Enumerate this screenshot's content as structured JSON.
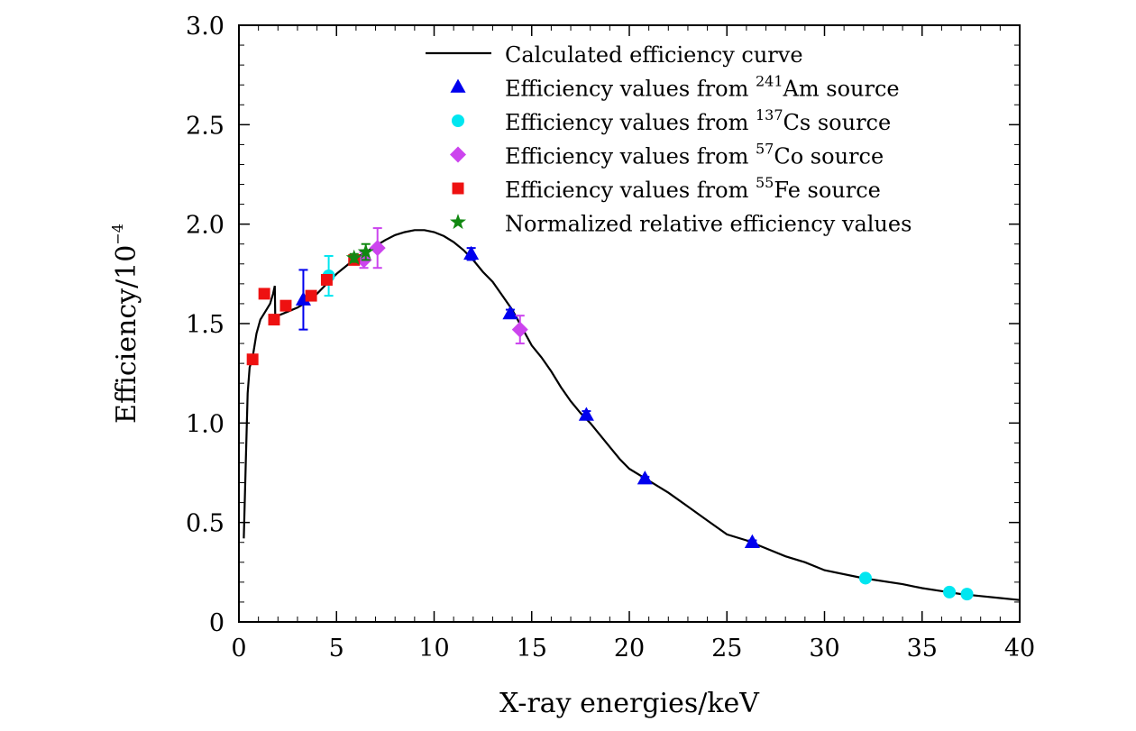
{
  "chart_data": {
    "type": "scatter",
    "xlabel": "X-ray energies/keV",
    "ylabel_main": "Efficiency/10",
    "ylabel_exp": "−4",
    "xlim": [
      0,
      40
    ],
    "ylim": [
      0,
      3.0
    ],
    "x_ticks": [
      0,
      5,
      10,
      15,
      20,
      25,
      30,
      35,
      40
    ],
    "x_tick_labels": [
      "0",
      "5",
      "10",
      "15",
      "20",
      "25",
      "30",
      "35",
      "40"
    ],
    "y_ticks": [
      0,
      0.5,
      1.0,
      1.5,
      2.0,
      2.5,
      3.0
    ],
    "y_tick_labels": [
      "0",
      "0.5",
      "1.0",
      "1.5",
      "2.0",
      "2.5",
      "3.0"
    ],
    "legend_position": "top-right",
    "curve": {
      "name": "Calculated efficiency curve",
      "color": "#000000",
      "points": [
        [
          0.25,
          0.42
        ],
        [
          0.35,
          0.8
        ],
        [
          0.45,
          1.15
        ],
        [
          0.55,
          1.28
        ],
        [
          0.7,
          1.33
        ],
        [
          0.9,
          1.45
        ],
        [
          1.1,
          1.52
        ],
        [
          1.35,
          1.56
        ],
        [
          1.6,
          1.6
        ],
        [
          1.75,
          1.65
        ],
        [
          1.84,
          1.69
        ],
        [
          1.86,
          1.53
        ],
        [
          2.0,
          1.54
        ],
        [
          2.5,
          1.56
        ],
        [
          3.0,
          1.58
        ],
        [
          3.5,
          1.61
        ],
        [
          4.0,
          1.65
        ],
        [
          4.5,
          1.7
        ],
        [
          5.0,
          1.75
        ],
        [
          5.5,
          1.79
        ],
        [
          6.0,
          1.83
        ],
        [
          6.5,
          1.86
        ],
        [
          7.0,
          1.89
        ],
        [
          7.5,
          1.92
        ],
        [
          8.0,
          1.945
        ],
        [
          8.5,
          1.96
        ],
        [
          9.0,
          1.97
        ],
        [
          9.5,
          1.97
        ],
        [
          10.0,
          1.96
        ],
        [
          10.5,
          1.94
        ],
        [
          11.0,
          1.91
        ],
        [
          11.5,
          1.87
        ],
        [
          12.0,
          1.82
        ],
        [
          12.5,
          1.76
        ],
        [
          13.0,
          1.71
        ],
        [
          13.5,
          1.64
        ],
        [
          14.0,
          1.57
        ],
        [
          14.5,
          1.48
        ],
        [
          15.0,
          1.39
        ],
        [
          15.5,
          1.33
        ],
        [
          16.0,
          1.26
        ],
        [
          16.5,
          1.18
        ],
        [
          17.0,
          1.11
        ],
        [
          17.5,
          1.05
        ],
        [
          18.0,
          1.0
        ],
        [
          18.5,
          0.94
        ],
        [
          19.0,
          0.88
        ],
        [
          19.5,
          0.82
        ],
        [
          20.0,
          0.77
        ],
        [
          21.0,
          0.71
        ],
        [
          22.0,
          0.65
        ],
        [
          23.0,
          0.58
        ],
        [
          24.0,
          0.51
        ],
        [
          25.0,
          0.44
        ],
        [
          26.0,
          0.41
        ],
        [
          27.0,
          0.37
        ],
        [
          28.0,
          0.33
        ],
        [
          29.0,
          0.3
        ],
        [
          30.0,
          0.26
        ],
        [
          32.0,
          0.22
        ],
        [
          34.0,
          0.19
        ],
        [
          35.0,
          0.17
        ],
        [
          36.0,
          0.155
        ],
        [
          37.0,
          0.14
        ],
        [
          38.0,
          0.13
        ],
        [
          39.0,
          0.12
        ],
        [
          40.0,
          0.11
        ]
      ]
    },
    "series": [
      {
        "isotope": "241",
        "element": "Am",
        "marker": "triangle",
        "color": "#0000ee",
        "points": [
          {
            "x": 3.3,
            "y": 1.62,
            "err": 0.15
          },
          {
            "x": 11.9,
            "y": 1.85,
            "err": 0.03
          },
          {
            "x": 13.9,
            "y": 1.55,
            "err": 0.02
          },
          {
            "x": 17.8,
            "y": 1.04,
            "err": 0.02
          },
          {
            "x": 20.8,
            "y": 0.72,
            "err": 0.01
          },
          {
            "x": 26.3,
            "y": 0.4,
            "err": 0.01
          }
        ]
      },
      {
        "isotope": "137",
        "element": "Cs",
        "marker": "circle",
        "color": "#00e6f0",
        "points": [
          {
            "x": 4.6,
            "y": 1.74,
            "err": 0.1
          },
          {
            "x": 32.1,
            "y": 0.22,
            "err": 0
          },
          {
            "x": 36.4,
            "y": 0.15,
            "err": 0
          },
          {
            "x": 37.3,
            "y": 0.14,
            "err": 0
          }
        ]
      },
      {
        "isotope": "57",
        "element": "Co",
        "marker": "diamond",
        "color": "#cc44ee",
        "points": [
          {
            "x": 6.4,
            "y": 1.82,
            "err": 0.04
          },
          {
            "x": 7.1,
            "y": 1.88,
            "err": 0.1
          },
          {
            "x": 14.4,
            "y": 1.47,
            "err": 0.07
          }
        ]
      },
      {
        "isotope": "55",
        "element": "Fe",
        "marker": "square",
        "color": "#ee1111",
        "points": [
          {
            "x": 0.7,
            "y": 1.32,
            "err": 0
          },
          {
            "x": 1.3,
            "y": 1.65,
            "err": 0
          },
          {
            "x": 1.8,
            "y": 1.52,
            "err": 0
          },
          {
            "x": 2.4,
            "y": 1.59,
            "err": 0
          },
          {
            "x": 3.7,
            "y": 1.64,
            "err": 0
          },
          {
            "x": 4.5,
            "y": 1.72,
            "err": 0
          },
          {
            "x": 5.9,
            "y": 1.82,
            "err": 0
          }
        ]
      },
      {
        "name": "Normalized relative efficiency values",
        "marker": "star",
        "color": "#118811",
        "points": [
          {
            "x": 5.9,
            "y": 1.83,
            "err": 0.02
          },
          {
            "x": 6.5,
            "y": 1.86,
            "err": 0.04
          }
        ]
      }
    ],
    "legend": {
      "curve_label": "Calculated efficiency curve",
      "prefix": "Efficiency values from ",
      "suffix": " source",
      "last_label": "Normalized relative efficiency values"
    }
  }
}
